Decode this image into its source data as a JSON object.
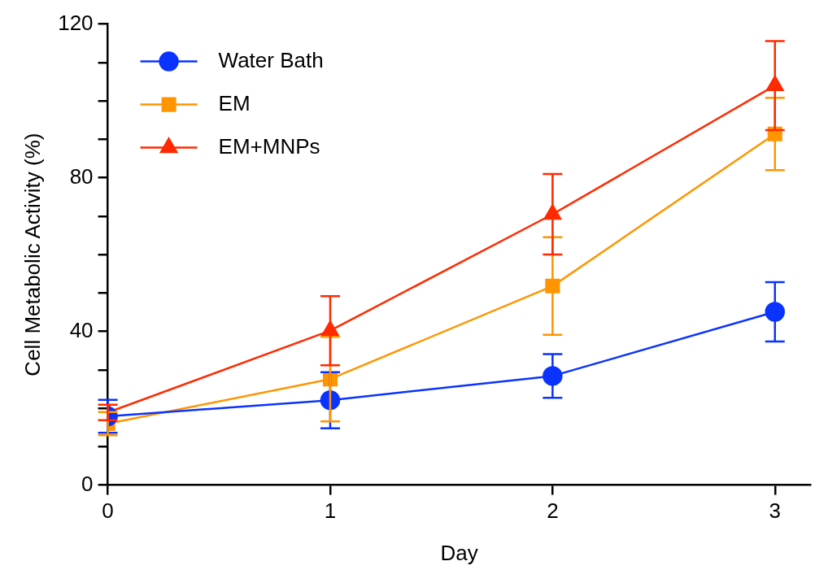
{
  "chart_data": {
    "type": "line",
    "xlabel": "Day",
    "ylabel": "Cell Metabolic Activity (%)",
    "x": [
      0,
      1,
      2,
      3
    ],
    "series": [
      {
        "name": "Water Bath",
        "color": "#0a33ff",
        "marker": "circle",
        "values": [
          17.9,
          22.1,
          28.4,
          45.1
        ],
        "errors": [
          4.3,
          7.3,
          5.7,
          7.7
        ]
      },
      {
        "name": "EM",
        "color": "#ff9500",
        "marker": "square",
        "values": [
          16.0,
          27.6,
          51.8,
          91.4
        ],
        "errors": [
          3,
          11,
          12.7,
          9.4
        ]
      },
      {
        "name": "EM+MNPs",
        "color": "#ff2a00",
        "marker": "triangle",
        "values": [
          18.9,
          40.2,
          70.5,
          104
        ],
        "errors": [
          2,
          9,
          10.5,
          11.6
        ]
      }
    ],
    "xlim": [
      0,
      3.16
    ],
    "xticks": [
      0,
      1,
      2,
      3
    ],
    "ylim": [
      0,
      120
    ],
    "yticks": [
      0,
      {
        "value": 10,
        "label": null
      },
      {
        "value": 20,
        "label": null
      },
      {
        "value": 30,
        "label": null
      },
      40,
      {
        "value": 50,
        "label": null
      },
      {
        "value": 60,
        "label": null
      },
      {
        "value": 70,
        "label": null
      },
      80,
      {
        "value": 90,
        "label": null
      },
      {
        "value": 100,
        "label": null
      },
      {
        "value": 110,
        "label": null
      },
      120
    ],
    "grid": false,
    "legend": "top left"
  }
}
